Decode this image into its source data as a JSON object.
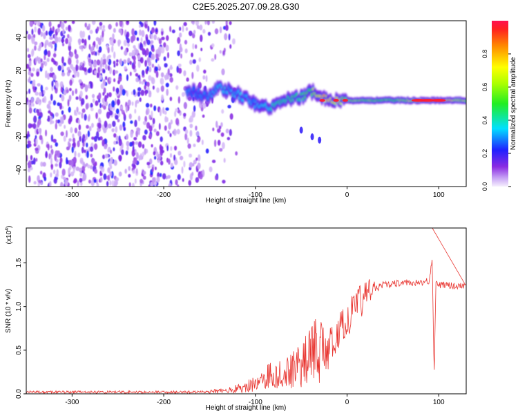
{
  "page_title": "C2E5.2025.207.09.28.G30",
  "chart_data": [
    {
      "type": "heatmap",
      "panel": "spectrogram",
      "xlabel": "Height of straight line (km)",
      "ylabel": "Frequency (Hz)",
      "xlim": [
        -350,
        130
      ],
      "ylim": [
        -50,
        50
      ],
      "xticks": [
        -300,
        -200,
        -100,
        0,
        100
      ],
      "yticks": [
        -40,
        -20,
        0,
        20,
        40
      ],
      "colorbar": {
        "label": "Normalized spectral amplitude",
        "range": [
          0.0,
          1.0
        ],
        "ticks": [
          0.0,
          0.2,
          0.4,
          0.6,
          0.8
        ],
        "tick_labels": [
          "0.0",
          "0.2",
          "0.4",
          "0.6",
          "0.8"
        ]
      },
      "features": [
        {
          "name": "scattered noise",
          "x_range": [
            -350,
            -120
          ],
          "y_range": [
            -50,
            50
          ],
          "amplitude": 0.1
        },
        {
          "name": "signal trace",
          "points": [
            [
              -175,
              8
            ],
            [
              -150,
              4
            ],
            [
              -140,
              10
            ],
            [
              -120,
              6
            ],
            [
              -100,
              0
            ],
            [
              -85,
              -2
            ],
            [
              -70,
              2
            ],
            [
              -50,
              4
            ],
            [
              -40,
              8
            ],
            [
              -30,
              5
            ],
            [
              -20,
              2
            ],
            [
              0,
              2
            ],
            [
              50,
              2
            ],
            [
              100,
              2
            ],
            [
              130,
              2
            ]
          ],
          "amplitude": [
            0.3,
            0.3,
            0.35,
            0.35,
            0.3,
            0.4,
            0.45,
            0.45,
            0.55,
            0.75,
            0.75,
            0.6,
            0.55,
            0.85,
            0.6
          ]
        },
        {
          "name": "descending trace",
          "points": [
            [
              -50,
              -16
            ],
            [
              -38,
              -20
            ],
            [
              -30,
              -22
            ]
          ],
          "amplitude": 0.2
        }
      ]
    },
    {
      "type": "line",
      "panel": "snr",
      "xlabel": "Height of straight line (km)",
      "ylabel": "SNR (10 * v/v)",
      "y_multiplier": "(x10",
      "y_multiplier_exp": "4",
      "y_multiplier_close": ")",
      "xlim": [
        -350,
        130
      ],
      "ylim": [
        0,
        1.9
      ],
      "xticks": [
        -300,
        -200,
        -100,
        0,
        100
      ],
      "yticks": [
        0.0,
        0.5,
        1.0,
        1.5
      ],
      "ytick_labels": [
        "0.0",
        "0.5",
        "1.0",
        "1.5"
      ],
      "color": "#e8332e",
      "series": [
        {
          "x": [
            -350,
            -250,
            -160,
            -130,
            -110,
            -100,
            -90,
            -80,
            -70,
            -60,
            -50,
            -40,
            -35,
            -30,
            -25,
            -20,
            -10,
            0,
            10,
            20,
            30,
            40,
            60,
            80,
            90,
            93,
            95,
            97,
            100,
            110,
            130
          ],
          "y": [
            0.02,
            0.02,
            0.02,
            0.04,
            0.08,
            0.12,
            0.18,
            0.24,
            0.22,
            0.3,
            0.35,
            0.42,
            0.55,
            0.5,
            0.45,
            0.55,
            0.7,
            0.85,
            1.0,
            1.12,
            1.2,
            1.25,
            1.27,
            1.27,
            1.3,
            1.55,
            0.2,
            1.3,
            1.25,
            1.24,
            1.24
          ]
        }
      ]
    }
  ]
}
